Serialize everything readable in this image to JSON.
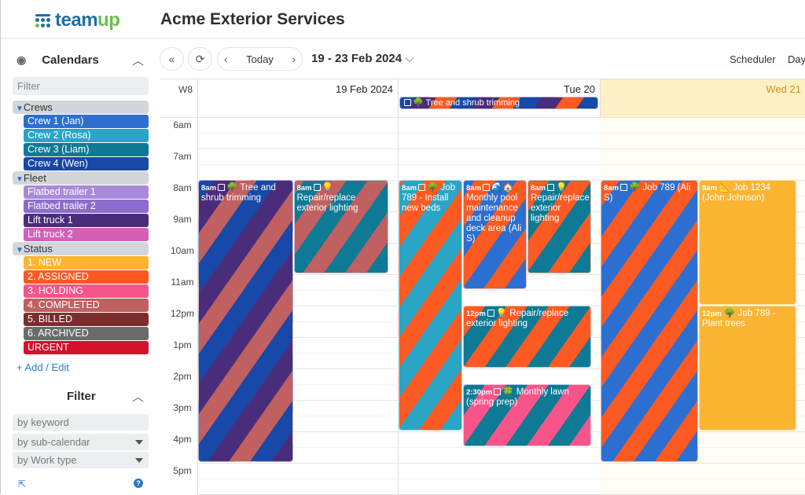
{
  "app": {
    "logo": "teamup",
    "title": "Acme Exterior Services"
  },
  "sidebar": {
    "calendars_title": "Calendars",
    "filter_placeholder": "Filter",
    "groups": [
      {
        "label": "Crews",
        "items": [
          {
            "label": "Crew 1 (Jan)",
            "color": "#2c6fd1"
          },
          {
            "label": "Crew 2 (Rosa)",
            "color": "#2aa5c5"
          },
          {
            "label": "Crew 3 (Liam)",
            "color": "#0e7a96"
          },
          {
            "label": "Crew 4 (Wen)",
            "color": "#1848a8"
          }
        ]
      },
      {
        "label": "Fleet",
        "items": [
          {
            "label": "Flatbed trailer 1",
            "color": "#a98ad8"
          },
          {
            "label": "Flatbed trailer 2",
            "color": "#8c6cd0"
          },
          {
            "label": "Lift truck 1",
            "color": "#4a2d7a"
          },
          {
            "label": "Lift truck 2",
            "color": "#d460b8"
          }
        ]
      },
      {
        "label": "Status",
        "items": [
          {
            "label": "1. NEW",
            "color": "#fbb532"
          },
          {
            "label": "2. ASSIGNED",
            "color": "#fc5a22"
          },
          {
            "label": "3. HOLDING",
            "color": "#f7558a"
          },
          {
            "label": "4. COMPLETED",
            "color": "#c06060"
          },
          {
            "label": "5. BILLED",
            "color": "#7b2d2d"
          },
          {
            "label": "6. ARCHIVED",
            "color": "#6b6b6b"
          },
          {
            "label": "URGENT",
            "color": "#d4102a"
          }
        ]
      }
    ],
    "add_edit": "+ Add / Edit",
    "filter_title": "Filter",
    "keyword_placeholder": "by keyword",
    "subcal": "by sub-calendar",
    "worktype": "by Work type"
  },
  "toolbar": {
    "today": "Today",
    "range": "19 - 23 Feb 2024",
    "views": [
      "Scheduler",
      "Day"
    ]
  },
  "calendar": {
    "week": "W8",
    "days": [
      {
        "label": "19 Feb 2024",
        "today": false
      },
      {
        "label": "Tue 20",
        "today": false
      },
      {
        "label": "Wed 21",
        "today": true
      }
    ],
    "hours": [
      "6am",
      "7am",
      "8am",
      "9am",
      "10am",
      "11am",
      "12pm",
      "1pm",
      "2pm",
      "3pm",
      "4pm",
      "5pm"
    ],
    "allday": [
      {
        "day": 1,
        "title": "🌳 Tree and shrub trimming",
        "colors": [
          "#1848a8",
          "#fc5a22",
          "#4a2d7a"
        ]
      }
    ],
    "events": [
      {
        "day": 0,
        "lane": 0,
        "lanes": 2,
        "start": 8,
        "end": 17,
        "time": "8am",
        "icon": "🌳",
        "title": "Tree and shrub trimming",
        "copy": true,
        "colors": [
          "#4a2d7a",
          "#1848a8",
          "#c06060"
        ]
      },
      {
        "day": 0,
        "lane": 1,
        "lanes": 2,
        "start": 8,
        "end": 11,
        "time": "8am",
        "icon": "💡",
        "title": "Repair/replace exterior lighting",
        "copy": true,
        "colors": [
          "#0e7a96",
          "#c06060"
        ]
      },
      {
        "day": 1,
        "lane": 0,
        "lanes": 3,
        "start": 8,
        "end": 16,
        "time": "8am",
        "icon": "🌳",
        "title": "Job 789 - Install new beds",
        "copy": true,
        "colors": [
          "#2aa5c5",
          "#fc5a22"
        ]
      },
      {
        "day": 1,
        "lane": 1,
        "lanes": 3,
        "start": 8,
        "end": 11.5,
        "time": "8am",
        "icon": "🌊🏠",
        "title": "Monthly pool maintenance and cleanup deck area (Ali S)",
        "copy": true,
        "colors": [
          "#2c6fd1",
          "#fc5a22"
        ]
      },
      {
        "day": 1,
        "lane": 2,
        "lanes": 3,
        "start": 8,
        "end": 11,
        "time": "8am",
        "icon": "💡",
        "title": "Repair/replace exterior lighting",
        "copy": true,
        "colors": [
          "#0e7a96",
          "#fc5a22"
        ]
      },
      {
        "day": 1,
        "lane": 1,
        "lanes": 3,
        "span": 2,
        "start": 12,
        "end": 14,
        "time": "12pm",
        "icon": "💡",
        "title": "Repair/replace exterior lighting",
        "copy": true,
        "colors": [
          "#0e7a96",
          "#fc5a22"
        ]
      },
      {
        "day": 1,
        "lane": 1,
        "lanes": 3,
        "span": 2,
        "start": 14.5,
        "end": 16.5,
        "time": "2:30pm",
        "icon": "🍀",
        "title": "Monthly lawn (spring prep)",
        "copy": true,
        "colors": [
          "#f7558a",
          "#0e7a96"
        ]
      },
      {
        "day": 2,
        "lane": 0,
        "lanes": 2,
        "start": 8,
        "end": 17,
        "time": "8am",
        "icon": "🌳",
        "title": "Job 789 (Ali S)",
        "copy": true,
        "colors": [
          "#2c6fd1",
          "#fc5a22"
        ]
      },
      {
        "day": 2,
        "lane": 1,
        "lanes": 2,
        "start": 8,
        "end": 12,
        "time": "8am",
        "icon": "📐",
        "title": "Job 1234 (John Johnson)",
        "copy": false,
        "colors": [
          "#fbb532"
        ]
      },
      {
        "day": 2,
        "lane": 1,
        "lanes": 2,
        "start": 12,
        "end": 16,
        "time": "12pm",
        "icon": "🌳",
        "title": "Job 789 - Plant trees",
        "copy": false,
        "colors": [
          "#fbb532"
        ]
      }
    ]
  }
}
